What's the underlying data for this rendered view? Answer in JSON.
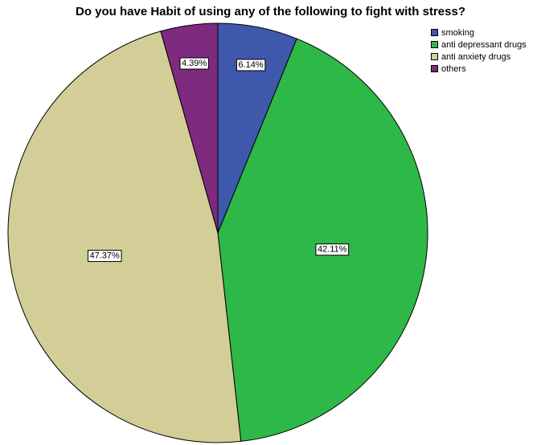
{
  "chart_data": {
    "type": "pie",
    "title": "Do you have Habit of using any of the following to fight with stress?",
    "slices": [
      {
        "name": "smoking",
        "value": 6.14,
        "label": "6.14%",
        "color": "#3e58ac"
      },
      {
        "name": "anti depressant drugs",
        "value": 42.11,
        "label": "42.11%",
        "color": "#2eb848"
      },
      {
        "name": "anti anxiety drugs",
        "value": 47.37,
        "label": "47.37%",
        "color": "#d3ce97"
      },
      {
        "name": "others",
        "value": 4.39,
        "label": "4.39%",
        "color": "#7e2a7e"
      }
    ],
    "start": "12 o'clock",
    "direction": "clockwise",
    "legend_position": "top-right"
  }
}
